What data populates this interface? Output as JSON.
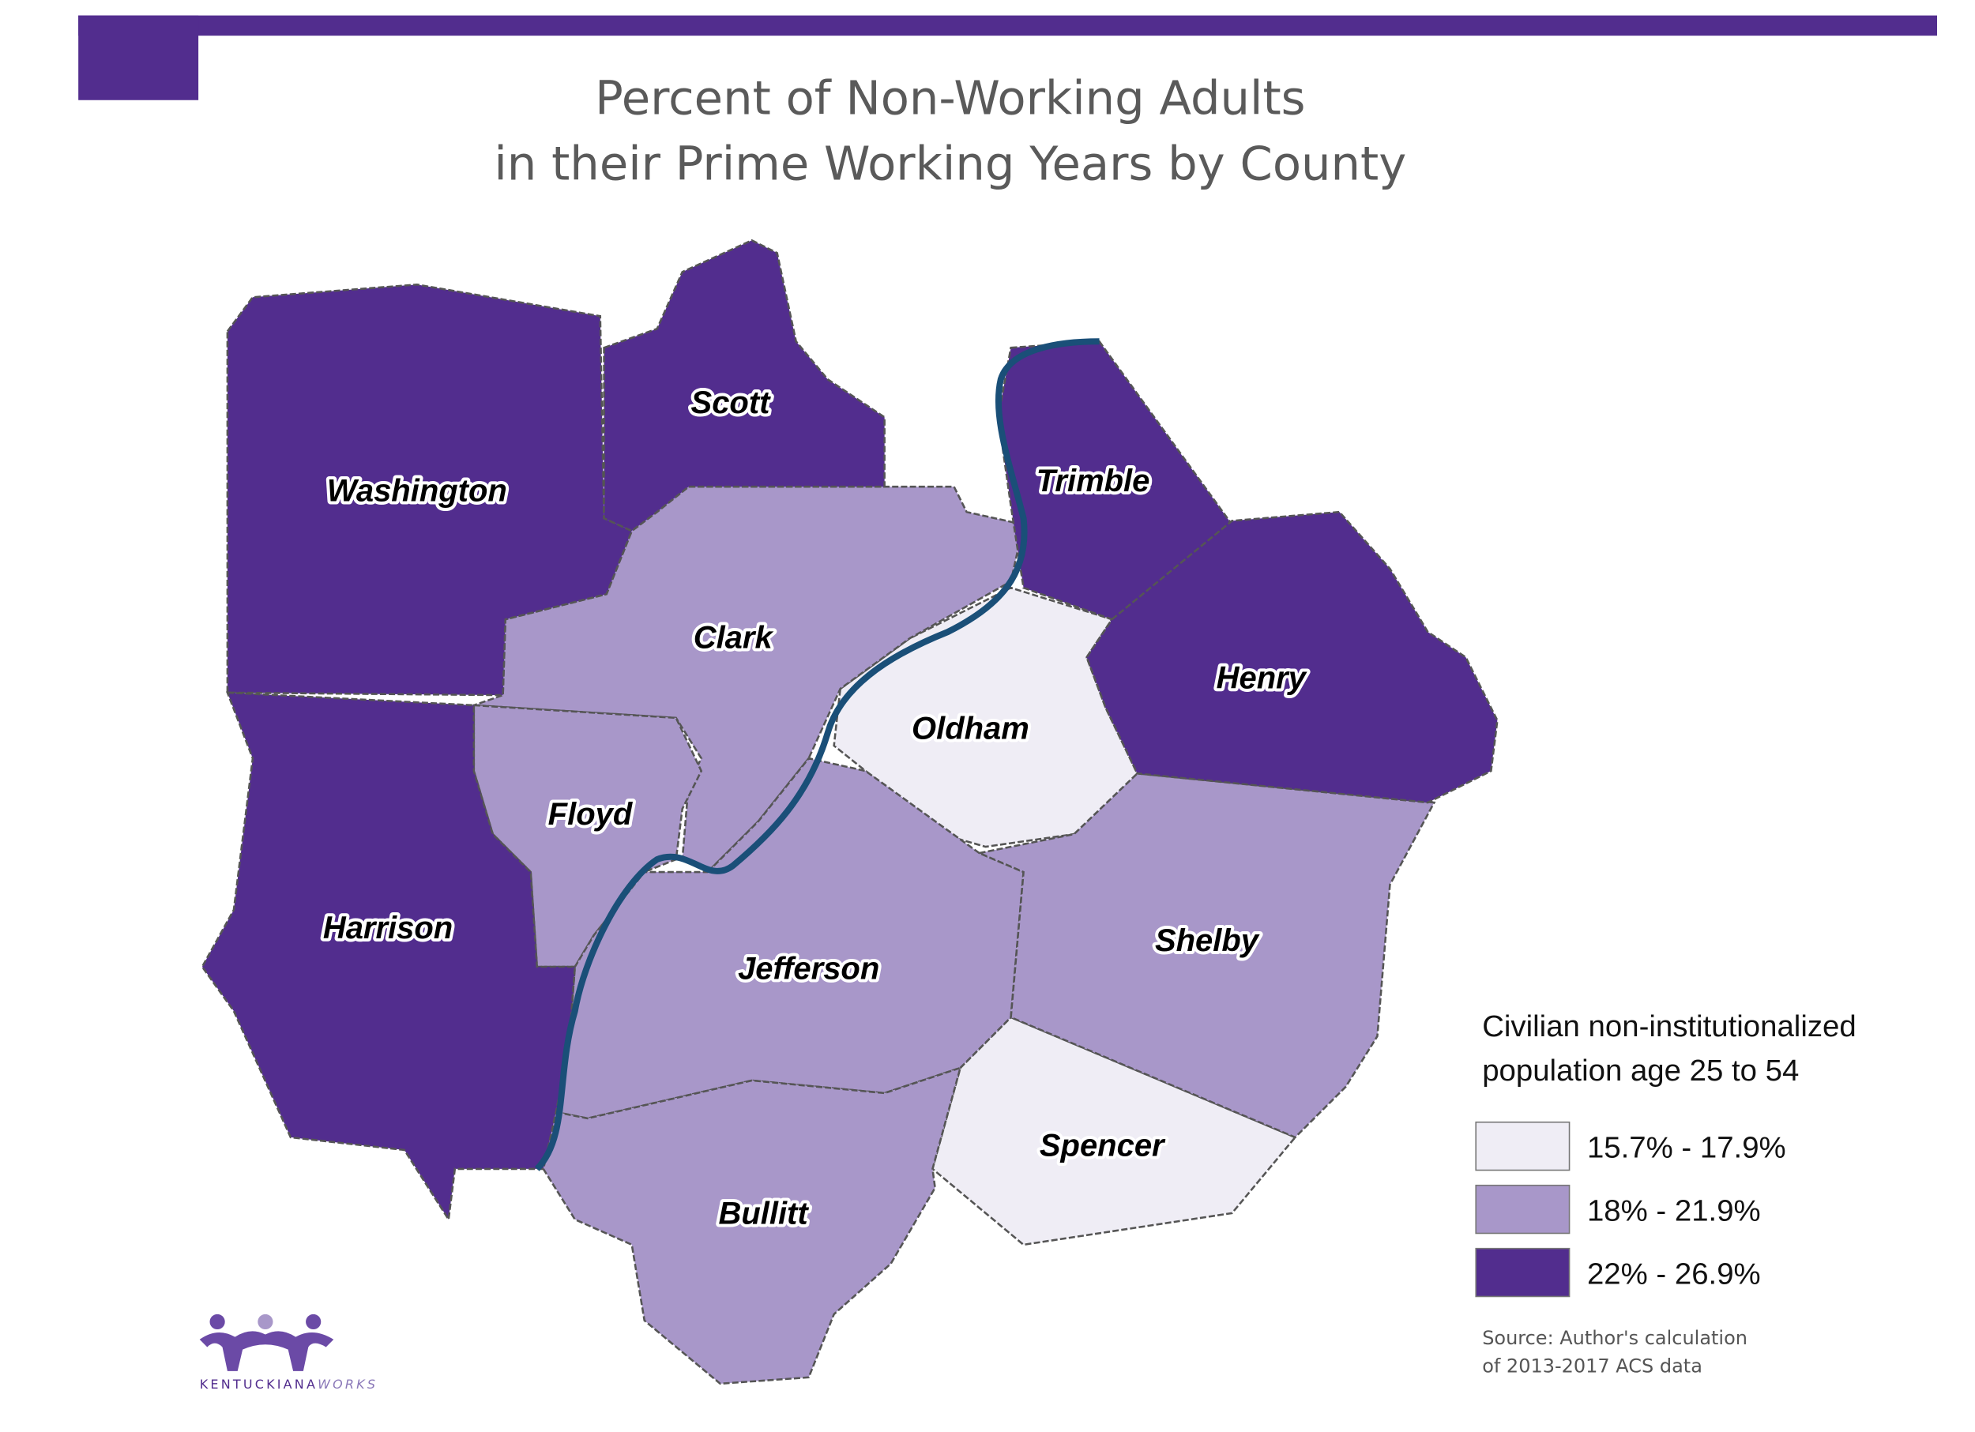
{
  "header": {
    "title_lines": [
      "Percent of Non-Working Adults",
      "in their Prime Working Years by County"
    ]
  },
  "legend": {
    "title_lines": [
      "Civilian non-institutionalized",
      "population age 25 to 54"
    ],
    "classes": [
      {
        "label": "15.7% - 17.9%",
        "color": "#efedf5",
        "counties": [
          "Oldham",
          "Spencer"
        ]
      },
      {
        "label": "18% - 21.9%",
        "color": "#a897c9",
        "counties": [
          "Clark",
          "Floyd",
          "Jefferson",
          "Shelby",
          "Bullitt"
        ]
      },
      {
        "label": "22% - 26.9%",
        "color": "#522d8e",
        "counties": [
          "Washington",
          "Scott",
          "Trimble",
          "Henry",
          "Harrison"
        ]
      }
    ]
  },
  "source_lines": [
    "Source: Author's calculation",
    "of 2013-2017 ACS data"
  ],
  "logo": {
    "text": "KENTUCKIANA",
    "text_accent": "WORKS"
  }
}
